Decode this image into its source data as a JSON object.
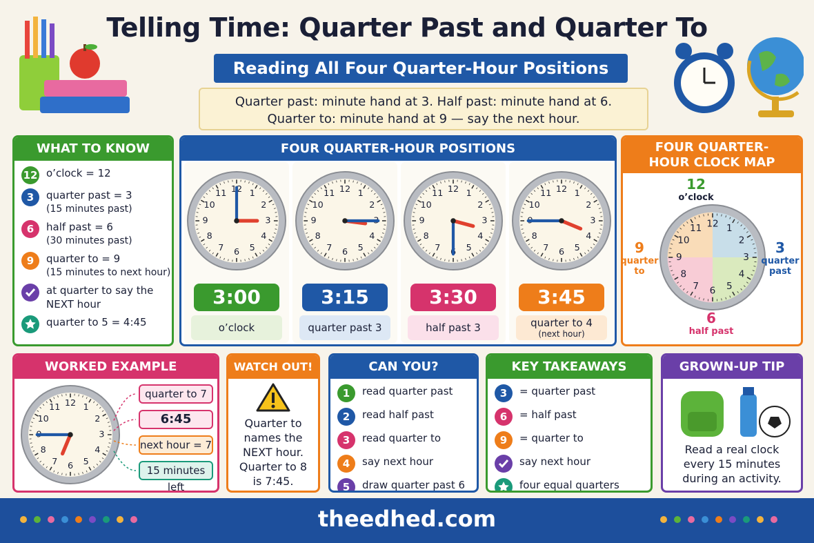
{
  "header": {
    "title": "Telling Time: Quarter Past and Quarter To",
    "subtitle": "Reading All Four Quarter-Hour Positions",
    "intro": [
      "Quarter past: minute hand at 3. Half past: minute hand at 6.",
      "Quarter to: minute hand at 9 — say the next hour."
    ]
  },
  "clock_numbers": [
    "12",
    "1",
    "2",
    "3",
    "4",
    "5",
    "6",
    "7",
    "8",
    "9",
    "10",
    "11"
  ],
  "what_to_know": {
    "title": "WHAT TO KNOW",
    "items": [
      {
        "badge": "12",
        "text": "o’clock = 12"
      },
      {
        "badge": "3",
        "text": "quarter past = 3",
        "note": "(15 minutes past)"
      },
      {
        "badge": "6",
        "text": "half past = 6",
        "note": "(30 minutes past)"
      },
      {
        "badge": "9",
        "text": "quarter to = 9",
        "note": "(15 minutes to next hour)"
      },
      {
        "text": "at quarter to say the NEXT hour"
      },
      {
        "text": "quarter to 5 = 4:45"
      }
    ]
  },
  "positions": {
    "title": "FOUR QUARTER-HOUR POSITIONS",
    "clocks": [
      {
        "time": "3:00",
        "label": "o’clock"
      },
      {
        "time": "3:15",
        "label": "quarter past 3"
      },
      {
        "time": "3:30",
        "label": "half past 3"
      },
      {
        "time": "3:45",
        "label": "quarter to 4",
        "note": "(next hour)"
      }
    ]
  },
  "clock_map": {
    "title": "FOUR QUARTER-HOUR CLOCK MAP",
    "markers": [
      {
        "number": "12",
        "label": "o’clock"
      },
      {
        "number": "3",
        "label": "quarter past"
      },
      {
        "number": "6",
        "label": "half past"
      },
      {
        "number": "9",
        "label": "quarter to"
      }
    ]
  },
  "worked_example": {
    "title": "WORKED EXAMPLE",
    "steps": [
      "quarter to 7",
      "6:45",
      "next hour = 7",
      "15 minutes left"
    ]
  },
  "watch_out": {
    "title": "WATCH OUT!",
    "text": "Quarter to names the NEXT hour. Quarter to 8 is 7:45."
  },
  "can_you": {
    "title": "CAN YOU?",
    "items": [
      {
        "badge": "1",
        "text": "read quarter past"
      },
      {
        "badge": "2",
        "text": "read half past"
      },
      {
        "badge": "3",
        "text": "read quarter to"
      },
      {
        "badge": "4",
        "text": "say next hour"
      },
      {
        "badge": "5",
        "text": "draw quarter past 6"
      }
    ]
  },
  "key_takeaways": {
    "title": "KEY TAKEAWAYS",
    "items": [
      {
        "badge": "3",
        "text": "= quarter past"
      },
      {
        "badge": "6",
        "text": "= half past"
      },
      {
        "badge": "9",
        "text": "= quarter to"
      },
      {
        "text": "say next hour"
      },
      {
        "text": "four equal quarters"
      }
    ]
  },
  "grown_up_tip": {
    "title": "GROWN-UP TIP",
    "text": "Read a real clock every 15 minutes during an activity."
  },
  "footer": {
    "site": "theedhed.com"
  }
}
